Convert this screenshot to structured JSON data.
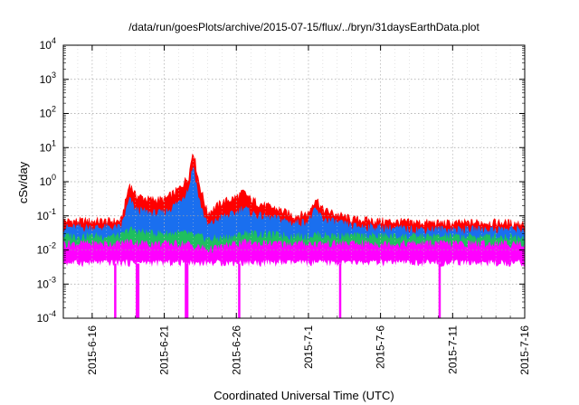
{
  "chart_data": {
    "type": "area",
    "title": "/data/run/goesPlots/archive/2015-07-15/flux/../bryn/31daysEarthData.plot",
    "xlabel": "Coordinated Universal Time (UTC)",
    "ylabel": "cSv/day",
    "yscale": "log",
    "ylim": [
      0.0001,
      10000
    ],
    "xlim": [
      "2015-06-14",
      "2015-07-16"
    ],
    "grid": true,
    "legend": "none",
    "x_ticks": [
      "2015-6-16",
      "2015-6-21",
      "2015-6-26",
      "2015-7-1",
      "2015-7-6",
      "2015-7-11",
      "2015-7-16"
    ],
    "y_ticks": [
      {
        "value": 0.0001,
        "base": "10",
        "exp": "-4"
      },
      {
        "value": 0.001,
        "base": "10",
        "exp": "-3"
      },
      {
        "value": 0.01,
        "base": "10",
        "exp": "-2"
      },
      {
        "value": 0.1,
        "base": "10",
        "exp": "-1"
      },
      {
        "value": 1,
        "base": "10",
        "exp": "0"
      },
      {
        "value": 10,
        "base": "10",
        "exp": "1"
      },
      {
        "value": 100,
        "base": "10",
        "exp": "2"
      },
      {
        "value": 1000,
        "base": "10",
        "exp": "3"
      },
      {
        "value": 10000,
        "base": "10",
        "exp": "4"
      }
    ],
    "x": [
      "2015-06-14",
      "2015-06-16",
      "2015-06-18",
      "2015-06-18.6",
      "2015-06-19",
      "2015-06-20",
      "2015-06-21",
      "2015-06-22",
      "2015-06-22.7",
      "2015-06-23",
      "2015-06-23.4",
      "2015-06-24",
      "2015-06-25",
      "2015-06-26",
      "2015-06-26.5",
      "2015-06-27",
      "2015-06-28",
      "2015-06-29",
      "2015-06-30",
      "2015-07-01",
      "2015-07-01.5",
      "2015-07-02",
      "2015-07-04",
      "2015-07-06",
      "2015-07-08",
      "2015-07-11",
      "2015-07-13",
      "2015-07-16"
    ],
    "series": [
      {
        "color": "#ff0000",
        "values": [
          0.07,
          0.07,
          0.07,
          0.9,
          0.4,
          0.3,
          0.3,
          0.6,
          1.5,
          9.0,
          1.0,
          0.12,
          0.25,
          0.35,
          0.5,
          0.3,
          0.2,
          0.15,
          0.1,
          0.12,
          0.35,
          0.15,
          0.08,
          0.07,
          0.065,
          0.06,
          0.065,
          0.06
        ]
      },
      {
        "color": "#1a6fef",
        "values": [
          0.045,
          0.045,
          0.045,
          0.3,
          0.15,
          0.12,
          0.12,
          0.25,
          0.6,
          3.0,
          0.3,
          0.05,
          0.09,
          0.12,
          0.18,
          0.12,
          0.09,
          0.08,
          0.06,
          0.07,
          0.15,
          0.08,
          0.05,
          0.045,
          0.04,
          0.04,
          0.04,
          0.04
        ]
      },
      {
        "color": "#1fbf5f",
        "values": [
          0.025,
          0.025,
          0.025,
          0.04,
          0.035,
          0.03,
          0.03,
          0.03,
          0.03,
          0.025,
          0.025,
          0.02,
          0.022,
          0.025,
          0.03,
          0.03,
          0.028,
          0.027,
          0.025,
          0.025,
          0.028,
          0.026,
          0.025,
          0.025,
          0.024,
          0.024,
          0.024,
          0.024
        ]
      },
      {
        "color": "#ff00ff",
        "values": [
          0.015,
          0.015,
          0.015,
          0.018,
          0.016,
          0.015,
          0.015,
          0.015,
          0.015,
          0.012,
          0.012,
          0.01,
          0.012,
          0.015,
          0.016,
          0.016,
          0.015,
          0.015,
          0.015,
          0.015,
          0.015,
          0.015,
          0.015,
          0.015,
          0.015,
          0.015,
          0.015,
          0.015
        ]
      }
    ],
    "dropouts": [
      {
        "x": "2015-06-17.6",
        "value": 0.0001
      },
      {
        "x": "2015-06-19.1",
        "value": 0.0001
      },
      {
        "x": "2015-06-19.2",
        "value": 0.0001
      },
      {
        "x": "2015-06-22.5",
        "value": 0.0001
      },
      {
        "x": "2015-06-22.6",
        "value": 0.0001
      },
      {
        "x": "2015-06-26.2",
        "value": 0.0001
      },
      {
        "x": "2015-07-03.2",
        "value": 0.0001
      },
      {
        "x": "2015-07-10.1",
        "value": 0.0001
      }
    ]
  }
}
